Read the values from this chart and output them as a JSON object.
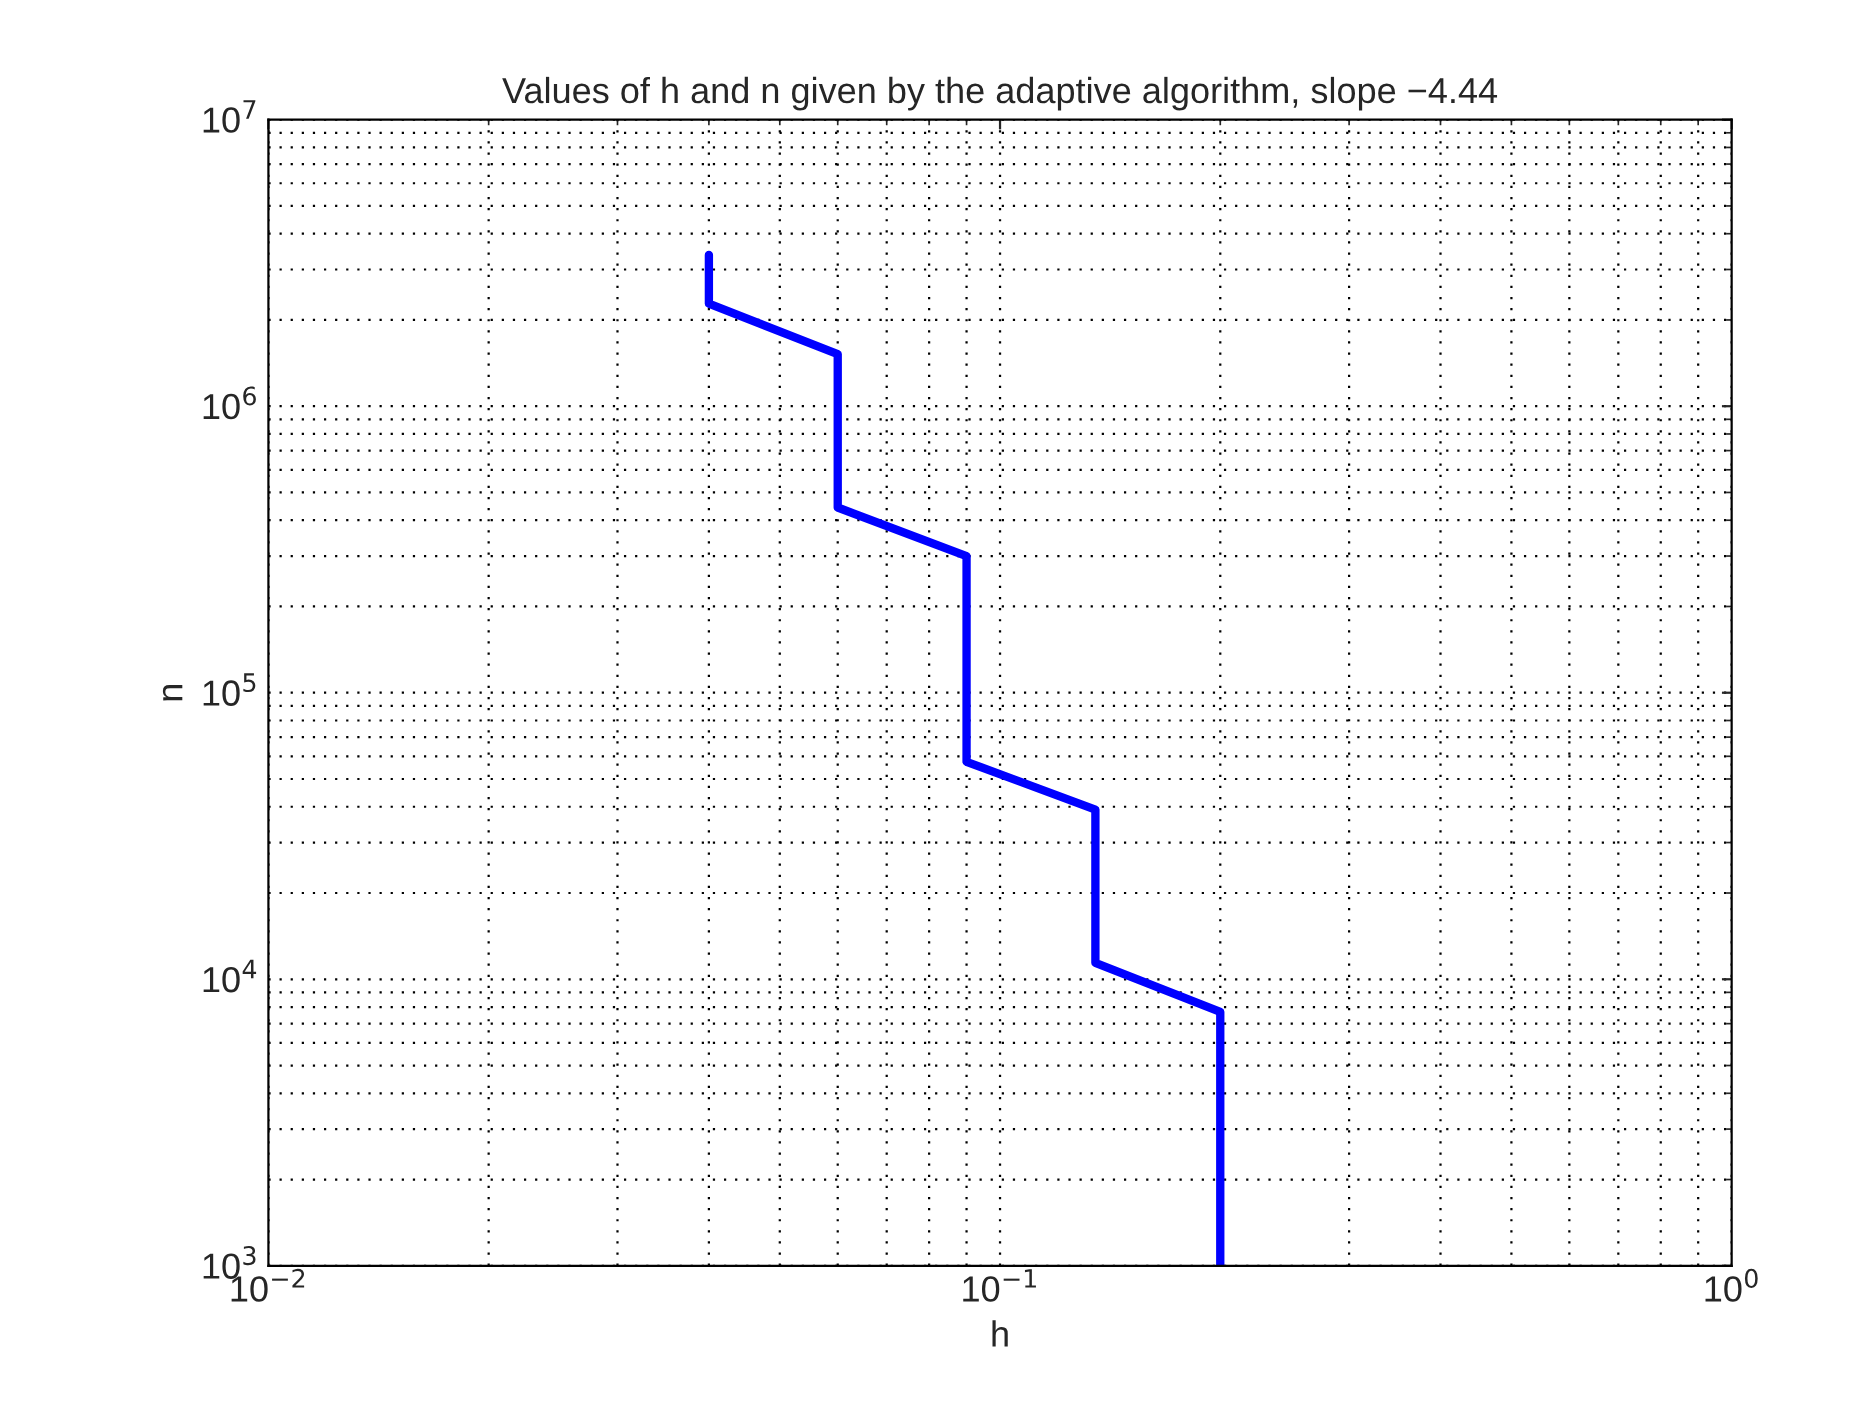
{
  "chart_data": {
    "type": "line",
    "title": "Values of h and n given by the adaptive algorithm, slope −4.44",
    "xlabel": "h",
    "ylabel": "n",
    "log": "xy",
    "grid": true,
    "line_style": "solid",
    "series": [
      {
        "color": "#0000ff",
        "x": [
          0.04,
          0.04,
          0.06,
          0.06,
          0.09,
          0.09,
          0.135,
          0.135,
          0.2,
          0.2
        ],
        "values": [
          3370000,
          2280000,
          1520000,
          443000,
          300000,
          57400,
          39100,
          11400,
          7700,
          1000
        ]
      }
    ],
    "xlim": [
      0.01,
      1
    ],
    "ylim": [
      1000,
      10000000
    ],
    "xticks": [
      {
        "value": 0.01,
        "label": "10$^{−2}$"
      },
      {
        "value": 0.1,
        "label": "10$^{−1}$"
      },
      {
        "value": 1,
        "label": "10$^{0}$"
      }
    ],
    "yticks": [
      {
        "value": 1000,
        "label": "10$^{3}$"
      },
      {
        "value": 10000,
        "label": "10$^{4}$"
      },
      {
        "value": 100000,
        "label": "10$^{5}$"
      },
      {
        "value": 1000000,
        "label": "10$^{6}$"
      },
      {
        "value": 10000000,
        "label": "10$^{7}$"
      }
    ]
  }
}
